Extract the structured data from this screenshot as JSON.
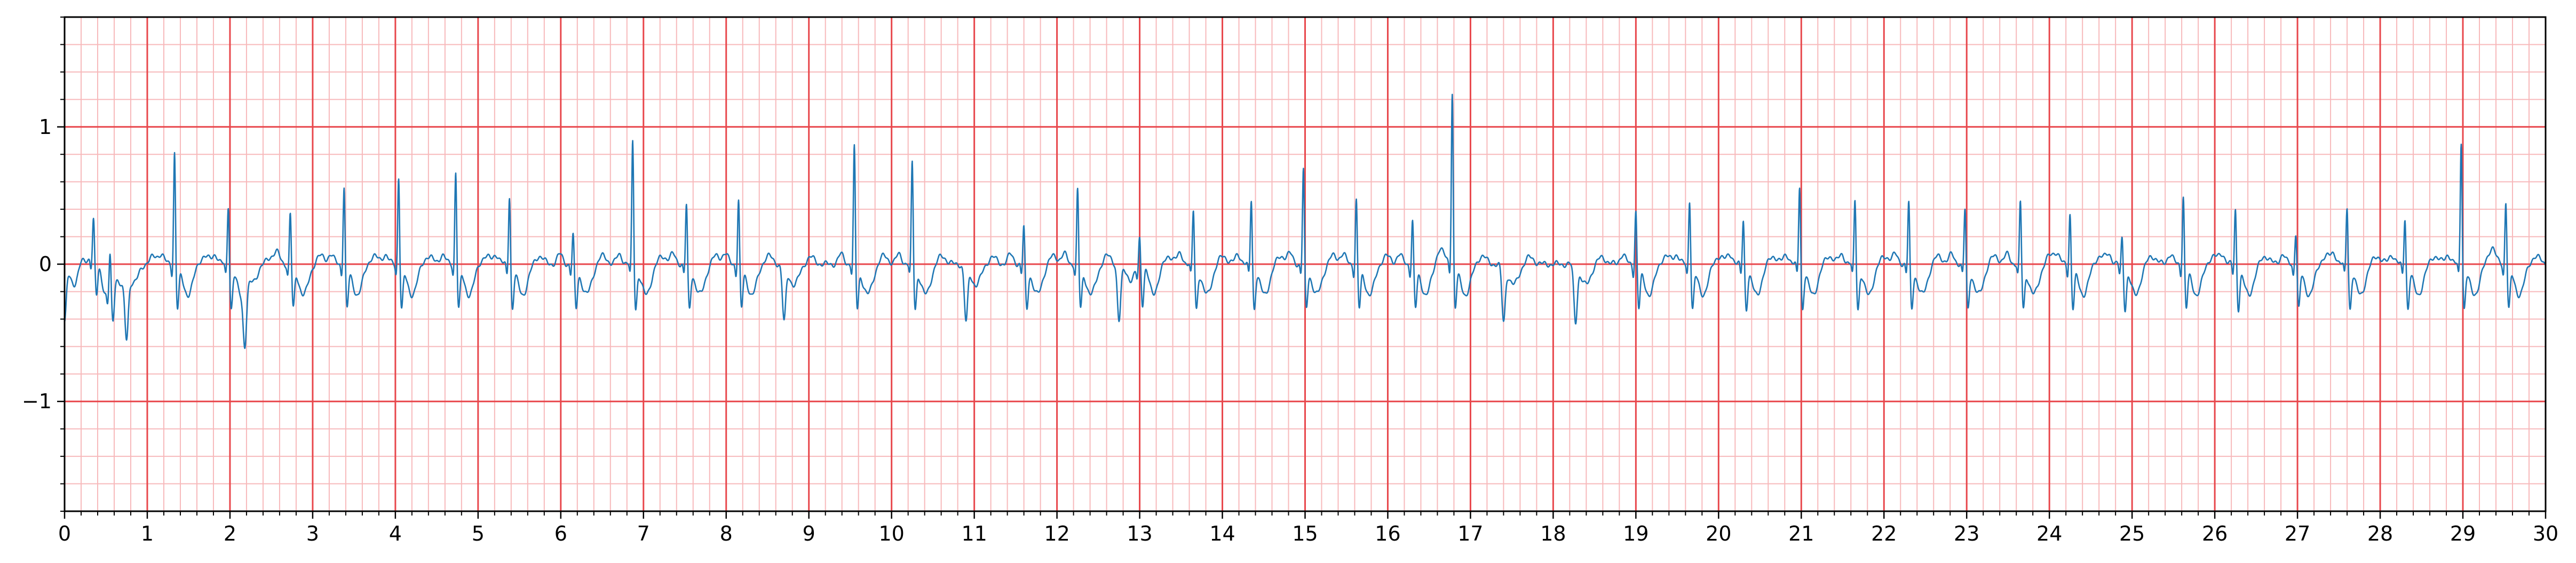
{
  "chart_data": {
    "type": "line",
    "title": "",
    "xlabel": "",
    "ylabel": "",
    "xlim": [
      0,
      30
    ],
    "ylim": [
      -1.8,
      1.8
    ],
    "grid": {
      "major_x_step": 1,
      "major_y_step": 1,
      "minor_x_step": 0.2,
      "minor_y_step": 0.2,
      "major_color": "#e8474c",
      "minor_color": "#f7b9bb"
    },
    "x_ticks": [
      "0",
      "1",
      "2",
      "3",
      "4",
      "5",
      "6",
      "7",
      "8",
      "9",
      "10",
      "11",
      "12",
      "13",
      "14",
      "15",
      "16",
      "17",
      "18",
      "19",
      "20",
      "21",
      "22",
      "23",
      "24",
      "25",
      "26",
      "27",
      "28",
      "29",
      "30"
    ],
    "y_ticks": [
      "−1",
      "0",
      "1"
    ],
    "y_tick_values": [
      -1,
      0,
      1
    ],
    "series": [
      {
        "color": "#1f77b4",
        "beats": [
          [
            0.0,
            0.0
          ],
          [
            0.35,
            0.28
          ],
          [
            0.55,
            0.27
          ],
          [
            0.75,
            0.0
          ],
          [
            1.33,
            0.85
          ],
          [
            1.98,
            0.46
          ],
          [
            2.18,
            0.0
          ],
          [
            2.73,
            0.4
          ],
          [
            3.38,
            0.6
          ],
          [
            4.04,
            0.67
          ],
          [
            4.73,
            0.71
          ],
          [
            5.38,
            0.53
          ],
          [
            6.15,
            0.24
          ],
          [
            6.87,
            0.93
          ],
          [
            7.52,
            0.46
          ],
          [
            8.15,
            0.5
          ],
          [
            8.7,
            0.0
          ],
          [
            9.55,
            0.88
          ],
          [
            10.25,
            0.77
          ],
          [
            10.9,
            0.0
          ],
          [
            11.6,
            0.3
          ],
          [
            12.25,
            0.57
          ],
          [
            12.75,
            0.0
          ],
          [
            13.0,
            0.22
          ],
          [
            13.65,
            0.42
          ],
          [
            14.35,
            0.5
          ],
          [
            14.98,
            0.72
          ],
          [
            15.62,
            0.5
          ],
          [
            16.3,
            0.35
          ],
          [
            16.78,
            1.28
          ],
          [
            17.4,
            0.0
          ],
          [
            18.27,
            0.0
          ],
          [
            19.0,
            0.42
          ],
          [
            19.65,
            0.5
          ],
          [
            20.3,
            0.35
          ],
          [
            20.98,
            0.6
          ],
          [
            21.65,
            0.5
          ],
          [
            22.3,
            0.48
          ],
          [
            22.98,
            0.43
          ],
          [
            23.65,
            0.48
          ],
          [
            24.25,
            0.4
          ],
          [
            24.88,
            0.22
          ],
          [
            25.62,
            0.53
          ],
          [
            26.25,
            0.43
          ],
          [
            26.98,
            0.26
          ],
          [
            27.6,
            0.45
          ],
          [
            28.3,
            0.37
          ],
          [
            28.98,
            0.93
          ],
          [
            29.52,
            0.49
          ]
        ]
      }
    ]
  }
}
